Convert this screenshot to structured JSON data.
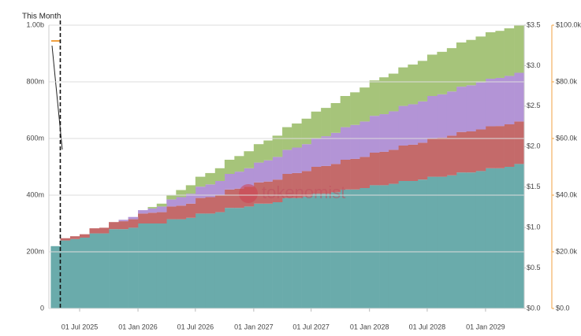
{
  "chart_data": {
    "type": "stacked-step-area",
    "x": [
      "2025-04-01",
      "2025-05-01",
      "2025-06-01",
      "2025-07-01",
      "2025-08-01",
      "2025-09-01",
      "2025-10-01",
      "2025-11-01",
      "2025-12-01",
      "2026-01-01",
      "2026-02-01",
      "2026-03-01",
      "2026-04-01",
      "2026-05-01",
      "2026-06-01",
      "2026-07-01",
      "2026-08-01",
      "2026-09-01",
      "2026-10-01",
      "2026-11-01",
      "2026-12-01",
      "2027-01-01",
      "2027-02-01",
      "2027-03-01",
      "2027-04-01",
      "2027-05-01",
      "2027-06-01",
      "2027-07-01",
      "2027-08-01",
      "2027-09-01",
      "2027-10-01",
      "2027-11-01",
      "2027-12-01",
      "2028-01-01",
      "2028-02-01",
      "2028-03-01",
      "2028-04-01",
      "2028-05-01",
      "2028-06-01",
      "2028-07-01",
      "2028-08-01",
      "2028-09-01",
      "2028-10-01",
      "2028-11-01",
      "2028-12-01",
      "2029-01-01",
      "2029-02-01",
      "2029-03-01",
      "2029-04-01"
    ],
    "series": [
      {
        "color": "#6aabab",
        "values": [
          220,
          240,
          245,
          250,
          265,
          265,
          280,
          280,
          285,
          300,
          300,
          300,
          315,
          315,
          320,
          335,
          335,
          340,
          355,
          355,
          360,
          370,
          370,
          375,
          390,
          390,
          395,
          405,
          405,
          410,
          420,
          420,
          425,
          435,
          435,
          440,
          450,
          450,
          455,
          465,
          465,
          470,
          480,
          480,
          485,
          495,
          495,
          500,
          510
        ]
      },
      {
        "color": "#c46a6a",
        "values": [
          0,
          8,
          10,
          12,
          18,
          20,
          25,
          28,
          30,
          35,
          38,
          40,
          45,
          48,
          50,
          55,
          58,
          60,
          65,
          68,
          70,
          75,
          78,
          80,
          85,
          88,
          90,
          95,
          98,
          100,
          105,
          108,
          110,
          115,
          118,
          120,
          125,
          128,
          130,
          135,
          138,
          140,
          143,
          145,
          147,
          148,
          149,
          150,
          150
        ]
      },
      {
        "color": "#b394d6",
        "values": [
          0,
          0,
          0,
          0,
          0,
          0,
          0,
          5,
          8,
          12,
          15,
          20,
          25,
          30,
          35,
          40,
          45,
          50,
          55,
          60,
          65,
          70,
          75,
          80,
          85,
          90,
          95,
          100,
          105,
          110,
          115,
          120,
          125,
          130,
          133,
          136,
          140,
          143,
          146,
          150,
          153,
          156,
          160,
          163,
          166,
          168,
          170,
          171,
          172
        ]
      },
      {
        "color": "#a6c47a",
        "values": [
          0,
          0,
          0,
          0,
          0,
          0,
          0,
          0,
          0,
          0,
          5,
          10,
          15,
          25,
          30,
          35,
          40,
          45,
          50,
          55,
          60,
          65,
          70,
          75,
          80,
          85,
          90,
          95,
          100,
          105,
          110,
          115,
          120,
          125,
          130,
          133,
          136,
          140,
          143,
          146,
          150,
          153,
          156,
          160,
          162,
          164,
          166,
          168,
          168
        ]
      }
    ],
    "xlim": [
      "2025-03-26",
      "2029-05-03"
    ],
    "xticks": [
      {
        "value": "2025-07-01",
        "label": "01 Jul 2025"
      },
      {
        "value": "2026-01-01",
        "label": "01 Jan 2026"
      },
      {
        "value": "2026-07-01",
        "label": "01 Jul 2026"
      },
      {
        "value": "2027-01-01",
        "label": "01 Jan 2027"
      },
      {
        "value": "2027-07-01",
        "label": "01 Jul 2027"
      },
      {
        "value": "2028-01-01",
        "label": "01 Jan 2028"
      },
      {
        "value": "2028-07-01",
        "label": "01 Jul 2028"
      },
      {
        "value": "2029-01-01",
        "label": "01 Jan 2029"
      }
    ],
    "ylim": [
      0,
      1000
    ],
    "yticks": [
      0,
      {
        "value": 200,
        "label": "200m"
      },
      {
        "value": 400,
        "label": "400m"
      },
      {
        "value": 600,
        "label": "600m"
      },
      {
        "value": 800,
        "label": "800m"
      },
      {
        "value": 1000,
        "label": "1.00b"
      }
    ],
    "y2lim": [
      0,
      3.5
    ],
    "y2ticks": [
      {
        "value": 0,
        "label": "$0.0"
      },
      {
        "value": 0.5,
        "label": "$0.5"
      },
      {
        "value": 1,
        "label": "$1.0"
      },
      {
        "value": 1.5,
        "label": "$1.5"
      },
      {
        "value": 2,
        "label": "$2.0"
      },
      {
        "value": 2.5,
        "label": "$2.5"
      },
      {
        "value": 3,
        "label": "$3.0"
      },
      {
        "value": 3.5,
        "label": "$3.5"
      }
    ],
    "y3lim": [
      0,
      100000
    ],
    "y3ticks": [
      {
        "value": 0,
        "label": "$0.0"
      },
      {
        "value": 20000,
        "label": "$20.0k"
      },
      {
        "value": 40000,
        "label": "$40.0k"
      },
      {
        "value": 60000,
        "label": "$60.0k"
      },
      {
        "value": 80000,
        "label": "$80.0k"
      },
      {
        "value": 100000,
        "label": "$100.0k"
      }
    ],
    "grid": true,
    "this_month": {
      "label": "This Month",
      "x": "2025-05-01"
    },
    "watermark": "tokenomist"
  }
}
